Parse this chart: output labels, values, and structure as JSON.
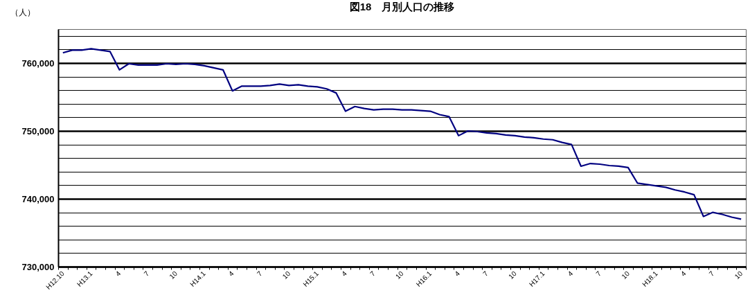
{
  "chart_data": {
    "type": "line",
    "title": "図18　月別人口の推移",
    "ylabel": "（人）",
    "categories": [
      "H12.10",
      null,
      null,
      "H13.1",
      null,
      null,
      "4",
      null,
      null,
      "7",
      null,
      null,
      "10",
      null,
      null,
      "H14.1",
      null,
      null,
      "4",
      null,
      null,
      "7",
      null,
      null,
      "10",
      null,
      null,
      "H15.1",
      null,
      null,
      "4",
      null,
      null,
      "7",
      null,
      null,
      "10",
      null,
      null,
      "H16.1",
      null,
      null,
      "4",
      null,
      null,
      "7",
      null,
      null,
      "10",
      null,
      null,
      "H17.1",
      null,
      null,
      "4",
      null,
      null,
      "7",
      null,
      null,
      "10",
      null,
      null,
      "H18.1",
      null,
      null,
      "4",
      null,
      null,
      "7",
      null,
      null,
      "10"
    ],
    "series": [
      {
        "color": "#000080",
        "values": [
          761500,
          761900,
          761900,
          762100,
          761900,
          761700,
          759000,
          759900,
          759700,
          759700,
          759700,
          759900,
          759800,
          759900,
          759800,
          759600,
          759300,
          759000,
          755900,
          756600,
          756600,
          756600,
          756700,
          756900,
          756700,
          756800,
          756600,
          756500,
          756200,
          755600,
          752900,
          753600,
          753300,
          753100,
          753200,
          753200,
          753100,
          753100,
          753000,
          752900,
          752400,
          752100,
          749300,
          750000,
          749900,
          749700,
          749600,
          749400,
          749300,
          749100,
          749000,
          748800,
          748700,
          748300,
          748000,
          744800,
          745200,
          745100,
          744900,
          744800,
          744600,
          742300,
          742100,
          741900,
          741700,
          741300,
          741000,
          740600,
          737400,
          738000,
          737700,
          737300,
          737000
        ]
      }
    ],
    "ylim": [
      730000,
      765000
    ],
    "yticks": [
      {
        "value": 730000,
        "label": "730,000"
      },
      {
        "value": 732000,
        "label": null
      },
      {
        "value": 734000,
        "label": null
      },
      {
        "value": 736000,
        "label": null
      },
      {
        "value": 738000,
        "label": null
      },
      {
        "value": 740000,
        "label": "740,000"
      },
      {
        "value": 742000,
        "label": null
      },
      {
        "value": 744000,
        "label": null
      },
      {
        "value": 746000,
        "label": null
      },
      {
        "value": 748000,
        "label": null
      },
      {
        "value": 750000,
        "label": "750,000"
      },
      {
        "value": 752000,
        "label": null
      },
      {
        "value": 754000,
        "label": null
      },
      {
        "value": 756000,
        "label": null
      },
      {
        "value": 758000,
        "label": null
      },
      {
        "value": 760000,
        "label": "760,000"
      },
      {
        "value": 762000,
        "label": null
      },
      {
        "value": 764000,
        "label": null
      }
    ],
    "grid": "y",
    "marker": "none",
    "line_style": "solid"
  }
}
